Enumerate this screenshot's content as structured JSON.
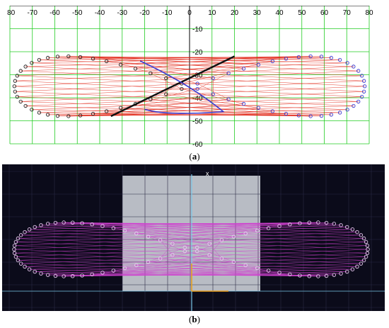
{
  "figure": {
    "panel_a": {
      "label_open": "(",
      "label_letter": "a",
      "label_close": ")",
      "x_ticks": [
        "-80",
        "-70",
        "-60",
        "-50",
        "-40",
        "-30",
        "-20",
        "-10",
        "0",
        "10",
        "20",
        "30",
        "40",
        "50",
        "60",
        "70",
        "80"
      ],
      "y_ticks": [
        "-10",
        "-20",
        "-30",
        "-40",
        "-50",
        "-60"
      ],
      "x_range": [
        -80,
        80
      ],
      "y_range": [
        0,
        -60
      ],
      "colors": {
        "grid": "#22cc22",
        "axis": "#000000",
        "lines": "#e02010",
        "left_circles": "#222222",
        "right_circles": "#3a3ad0",
        "dark_line": "#111111",
        "blue_line": "#3a3ad0"
      }
    },
    "panel_b": {
      "label_open": "(",
      "label_letter": "b",
      "label_close": ")",
      "axis_marker": "x",
      "colors": {
        "background": "#0b0b1a",
        "grid": "#2a2a44",
        "highlight": "#c8ccd2",
        "lines": "#d040d0",
        "circles": "#e8c8f0",
        "axis": "#79c8e8",
        "vector": "#e8a020"
      }
    }
  }
}
